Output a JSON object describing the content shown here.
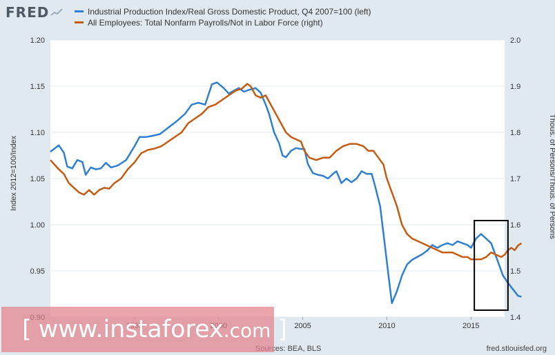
{
  "header": {
    "logo_text": "FRED",
    "legend": [
      {
        "label": "Industrial Production Index/Real Gross Domestic Product, Q4 2007=100 (left)",
        "color": "#2e7fd1"
      },
      {
        "label": "All Employees: Total Nonfarm Payrolls/Not in Labor Force (right)",
        "color": "#c55a11"
      }
    ]
  },
  "footer": {
    "sources": "Sources: BEA, BLS",
    "url": "fred.stlouisfed.org"
  },
  "watermark": {
    "open_bracket": "[",
    "text": "www.instaforex",
    "suffix": ".com",
    "close_bracket": "]"
  },
  "chart_data": {
    "type": "line",
    "title": "",
    "xlabel": "",
    "ylabel_left": "Index 2012=100/Index",
    "ylabel_right": "Thous. of Persons/Thous. of Persons",
    "xlim": [
      1990.0,
      2017.0
    ],
    "ylim_left": [
      0.9,
      1.2
    ],
    "ylim_right": [
      1.4,
      2.0
    ],
    "yticks_left": [
      "0.90",
      "0.95",
      "1.00",
      "1.05",
      "1.10",
      "1.15",
      "1.20"
    ],
    "yticks_right": [
      "1.4",
      "1.5",
      "1.6",
      "1.7",
      "1.8",
      "1.9",
      "2.0"
    ],
    "xticks": [
      {
        "value": 1995,
        "label": "1995"
      },
      {
        "value": 2000,
        "label": "2000"
      },
      {
        "value": 2005,
        "label": "2005"
      },
      {
        "value": 2010,
        "label": "2010"
      },
      {
        "value": 2015,
        "label": "2015"
      }
    ],
    "grid": "horizontal",
    "series": [
      {
        "name": "Industrial Production Index/Real Gross Domestic Product, Q4 2007=100 (left)",
        "axis": "left",
        "color": "#2e7fd1",
        "points": [
          [
            1990.0,
            1.079
          ],
          [
            1990.5,
            1.086
          ],
          [
            1990.8,
            1.078
          ],
          [
            1991.0,
            1.063
          ],
          [
            1991.3,
            1.061
          ],
          [
            1991.6,
            1.07
          ],
          [
            1991.9,
            1.068
          ],
          [
            1992.1,
            1.054
          ],
          [
            1992.4,
            1.062
          ],
          [
            1992.7,
            1.06
          ],
          [
            1993.0,
            1.061
          ],
          [
            1993.3,
            1.067
          ],
          [
            1993.6,
            1.062
          ],
          [
            1994.0,
            1.064
          ],
          [
            1994.5,
            1.07
          ],
          [
            1995.0,
            1.085
          ],
          [
            1995.3,
            1.095
          ],
          [
            1995.7,
            1.095
          ],
          [
            1996.0,
            1.096
          ],
          [
            1996.5,
            1.098
          ],
          [
            1997.0,
            1.105
          ],
          [
            1997.5,
            1.112
          ],
          [
            1998.0,
            1.12
          ],
          [
            1998.4,
            1.13
          ],
          [
            1998.8,
            1.132
          ],
          [
            1999.2,
            1.13
          ],
          [
            1999.6,
            1.152
          ],
          [
            1999.9,
            1.154
          ],
          [
            2000.3,
            1.148
          ],
          [
            2000.6,
            1.142
          ],
          [
            2000.9,
            1.145
          ],
          [
            2001.2,
            1.148
          ],
          [
            2001.5,
            1.144
          ],
          [
            2001.8,
            1.146
          ],
          [
            2002.2,
            1.148
          ],
          [
            2002.5,
            1.143
          ],
          [
            2002.8,
            1.13
          ],
          [
            2003.0,
            1.12
          ],
          [
            2003.3,
            1.1
          ],
          [
            2003.6,
            1.088
          ],
          [
            2003.8,
            1.075
          ],
          [
            2004.0,
            1.073
          ],
          [
            2004.3,
            1.08
          ],
          [
            2004.6,
            1.083
          ],
          [
            2004.9,
            1.082
          ],
          [
            2005.1,
            1.082
          ],
          [
            2005.3,
            1.066
          ],
          [
            2005.6,
            1.056
          ],
          [
            2005.9,
            1.054
          ],
          [
            2006.2,
            1.053
          ],
          [
            2006.5,
            1.05
          ],
          [
            2006.8,
            1.055
          ],
          [
            2007.0,
            1.058
          ],
          [
            2007.3,
            1.045
          ],
          [
            2007.6,
            1.05
          ],
          [
            2007.9,
            1.046
          ],
          [
            2008.2,
            1.05
          ],
          [
            2008.5,
            1.058
          ],
          [
            2008.8,
            1.055
          ],
          [
            2009.1,
            1.055
          ],
          [
            2009.3,
            1.042
          ],
          [
            2009.6,
            1.02
          ],
          [
            2009.9,
            0.975
          ],
          [
            2010.1,
            0.945
          ],
          [
            2010.3,
            0.915
          ],
          [
            2010.6,
            0.928
          ],
          [
            2010.9,
            0.945
          ],
          [
            2011.2,
            0.957
          ],
          [
            2011.5,
            0.962
          ],
          [
            2011.8,
            0.965
          ],
          [
            2012.1,
            0.968
          ],
          [
            2012.4,
            0.972
          ],
          [
            2012.7,
            0.978
          ],
          [
            2013.0,
            0.975
          ],
          [
            2013.3,
            0.978
          ],
          [
            2013.6,
            0.98
          ],
          [
            2013.9,
            0.978
          ],
          [
            2014.2,
            0.982
          ],
          [
            2014.5,
            0.98
          ],
          [
            2014.8,
            0.978
          ],
          [
            2015.0,
            0.975
          ],
          [
            2015.3,
            0.985
          ],
          [
            2015.6,
            0.99
          ],
          [
            2015.9,
            0.985
          ],
          [
            2016.2,
            0.98
          ],
          [
            2016.4,
            0.97
          ],
          [
            2016.6,
            0.96
          ],
          [
            2016.9,
            0.945
          ],
          [
            2017.2,
            0.937
          ],
          [
            2017.5,
            0.93
          ],
          [
            2017.8,
            0.923
          ],
          [
            2018.0,
            0.922
          ]
        ]
      },
      {
        "name": "All Employees: Total Nonfarm Payrolls/Not in Labor Force (right)",
        "axis": "right",
        "color": "#c55a11",
        "points": [
          [
            1990.0,
            1.74
          ],
          [
            1990.5,
            1.72
          ],
          [
            1990.8,
            1.71
          ],
          [
            1991.1,
            1.69
          ],
          [
            1991.4,
            1.68
          ],
          [
            1991.7,
            1.67
          ],
          [
            1992.0,
            1.665
          ],
          [
            1992.3,
            1.675
          ],
          [
            1992.6,
            1.665
          ],
          [
            1992.9,
            1.675
          ],
          [
            1993.2,
            1.68
          ],
          [
            1993.5,
            1.678
          ],
          [
            1993.8,
            1.69
          ],
          [
            1994.2,
            1.7
          ],
          [
            1994.6,
            1.72
          ],
          [
            1995.0,
            1.735
          ],
          [
            1995.4,
            1.755
          ],
          [
            1995.8,
            1.762
          ],
          [
            1996.2,
            1.765
          ],
          [
            1996.6,
            1.77
          ],
          [
            1997.0,
            1.78
          ],
          [
            1997.4,
            1.79
          ],
          [
            1997.8,
            1.8
          ],
          [
            1998.2,
            1.82
          ],
          [
            1998.6,
            1.83
          ],
          [
            1999.0,
            1.84
          ],
          [
            1999.4,
            1.855
          ],
          [
            1999.8,
            1.86
          ],
          [
            2000.2,
            1.87
          ],
          [
            2000.6,
            1.88
          ],
          [
            2001.0,
            1.89
          ],
          [
            2001.4,
            1.895
          ],
          [
            2001.7,
            1.905
          ],
          [
            2001.9,
            1.9
          ],
          [
            2002.2,
            1.88
          ],
          [
            2002.5,
            1.875
          ],
          [
            2002.8,
            1.88
          ],
          [
            2003.1,
            1.86
          ],
          [
            2003.4,
            1.84
          ],
          [
            2003.7,
            1.82
          ],
          [
            2004.0,
            1.8
          ],
          [
            2004.3,
            1.79
          ],
          [
            2004.6,
            1.785
          ],
          [
            2004.9,
            1.78
          ],
          [
            2005.1,
            1.76
          ],
          [
            2005.4,
            1.745
          ],
          [
            2005.8,
            1.74
          ],
          [
            2006.2,
            1.745
          ],
          [
            2006.6,
            1.745
          ],
          [
            2007.0,
            1.76
          ],
          [
            2007.4,
            1.77
          ],
          [
            2007.8,
            1.775
          ],
          [
            2008.2,
            1.775
          ],
          [
            2008.6,
            1.77
          ],
          [
            2008.9,
            1.76
          ],
          [
            2009.2,
            1.76
          ],
          [
            2009.5,
            1.745
          ],
          [
            2009.8,
            1.73
          ],
          [
            2010.0,
            1.7
          ],
          [
            2010.3,
            1.67
          ],
          [
            2010.6,
            1.64
          ],
          [
            2010.9,
            1.6
          ],
          [
            2011.2,
            1.58
          ],
          [
            2011.5,
            1.57
          ],
          [
            2011.8,
            1.565
          ],
          [
            2012.1,
            1.56
          ],
          [
            2012.4,
            1.555
          ],
          [
            2012.7,
            1.55
          ],
          [
            2013.0,
            1.545
          ],
          [
            2013.3,
            1.54
          ],
          [
            2013.6,
            1.54
          ],
          [
            2013.9,
            1.54
          ],
          [
            2014.2,
            1.535
          ],
          [
            2014.5,
            1.53
          ],
          [
            2014.8,
            1.53
          ],
          [
            2015.0,
            1.525
          ],
          [
            2015.3,
            1.525
          ],
          [
            2015.6,
            1.525
          ],
          [
            2015.9,
            1.53
          ],
          [
            2016.2,
            1.54
          ],
          [
            2016.5,
            1.535
          ],
          [
            2016.8,
            1.53
          ],
          [
            2017.0,
            1.535
          ],
          [
            2017.2,
            1.545
          ],
          [
            2017.4,
            1.55
          ],
          [
            2017.6,
            1.545
          ],
          [
            2017.8,
            1.555
          ],
          [
            2018.0,
            1.56
          ]
        ]
      }
    ],
    "annotations": [
      {
        "type": "rectangle",
        "x0": 2015.2,
        "x1": 2017.2,
        "y0_left": 0.9075,
        "y1_left": 1.0045
      }
    ]
  }
}
